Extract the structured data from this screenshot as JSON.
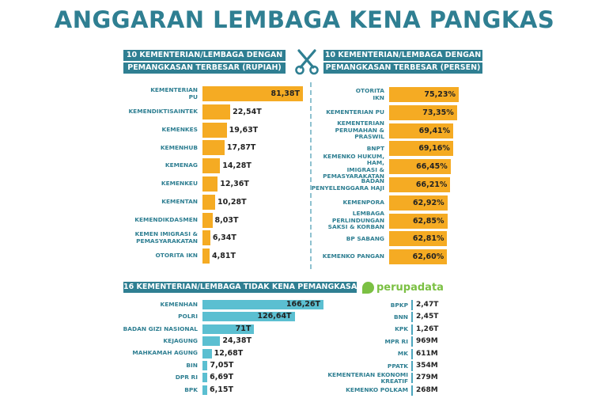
{
  "title": "ANGGARAN LEMBAGA KENA PANGKAS",
  "headers": {
    "rupiah_line1": "10 KEMENTERIAN/LEMBAGA DENGAN",
    "rupiah_line2": "PEMANGKASAN TERBESAR (RUPIAH)",
    "persen_line1": "10 KEMENTERIAN/LEMBAGA DENGAN",
    "persen_line2": "PEMANGKASAN TERBESAR (PERSEN)",
    "tidak_kena": "16 KEMENTERIAN/LEMBAGA TIDAK KENA PEMANGKASAN"
  },
  "brand": {
    "name": "perupadata",
    "color": "#7bc043"
  },
  "colors": {
    "orange": "#f5ab23",
    "teal_bar": "#5bbfd1",
    "teal_text": "#2f7f92"
  },
  "icons": {
    "scissors": "scissors-icon"
  },
  "chart_data": [
    {
      "type": "bar",
      "orientation": "horizontal",
      "title": "10 KEMENTERIAN/LEMBAGA DENGAN PEMANGKASAN TERBESAR (RUPIAH)",
      "unit": "T",
      "categories": [
        "KEMENTERIAN\nPU",
        "KEMENDIKTISAINTEK",
        "KEMENKES",
        "KEMENHUB",
        "KEMENAG",
        "KEMENKEU",
        "KEMENTAN",
        "KEMENDIKDASMEN",
        "KEMEN IMIGRASI &\nPEMASYARAKATAN",
        "OTORITA IKN"
      ],
      "values": [
        81.38,
        22.54,
        19.63,
        17.87,
        14.28,
        12.36,
        10.28,
        8.03,
        6.34,
        4.81
      ],
      "value_labels": [
        "81,38T",
        "22,54T",
        "19,63T",
        "17,87T",
        "14,28T",
        "12,36T",
        "10,28T",
        "8,03T",
        "6,34T",
        "4,81T"
      ]
    },
    {
      "type": "bar",
      "orientation": "horizontal",
      "title": "10 KEMENTERIAN/LEMBAGA DENGAN PEMANGKASAN TERBESAR (PERSEN)",
      "unit": "%",
      "categories": [
        "OTORITA\nIKN",
        "KEMENTERIAN PU",
        "KEMENTERIAN\nPERUMAHAN & PRASWIL",
        "BNPT",
        "KEMENKO HUKUM, HAM,\nIMIGRASI &\nPEMASYARAKATAN",
        "BADAN\nPENYELENGGARA HAJI",
        "KEMENPORA",
        "LEMBAGA PERLINDUNGAN\nSAKSI & KORBAN",
        "BP SABANG",
        "KEMENKO PANGAN"
      ],
      "values": [
        75.23,
        73.35,
        69.41,
        69.16,
        66.45,
        66.21,
        62.92,
        62.85,
        62.81,
        62.6
      ],
      "value_labels": [
        "75,23%",
        "73,35%",
        "69,41%",
        "69,16%",
        "66,45%",
        "66,21%",
        "62,92%",
        "62,85%",
        "62,81%",
        "62,60%"
      ]
    },
    {
      "type": "bar",
      "orientation": "horizontal",
      "title": "16 KEMENTERIAN/LEMBAGA TIDAK KENA PEMANGKASAN",
      "unit": "T",
      "categories": [
        "KEMENHAN",
        "POLRI",
        "BADAN GIZI NASIONAL",
        "KEJAGUNG",
        "MAHKAMAH AGUNG",
        "BIN",
        "DPR RI",
        "BPK"
      ],
      "values": [
        166.26,
        126.64,
        71,
        24.38,
        12.68,
        7.05,
        6.69,
        6.15
      ],
      "value_labels": [
        "166,26T",
        "126,64T",
        "71T",
        "24,38T",
        "12,68T",
        "7,05T",
        "6,69T",
        "6,15T"
      ]
    },
    {
      "type": "table",
      "title": "16 KEMENTERIAN/LEMBAGA TIDAK KENA PEMANGKASAN",
      "categories": [
        "BPKP",
        "BNN",
        "KPK",
        "MPR RI",
        "MK",
        "PPATK",
        "KEMENTERIAN EKONOMI\nKREATIF",
        "KEMENKO POLKAM"
      ],
      "value_labels": [
        "2,47T",
        "2,45T",
        "1,26T",
        "969M",
        "611M",
        "354M",
        "279M",
        "268M"
      ]
    }
  ]
}
